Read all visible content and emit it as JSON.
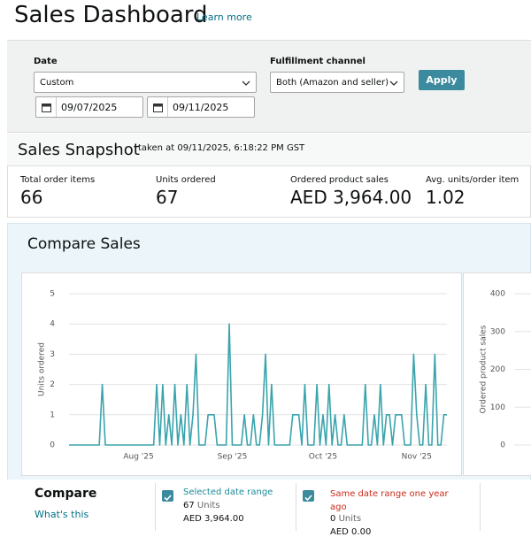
{
  "header": {
    "title": "Sales Dashboard",
    "link": "Learn more"
  },
  "filters": {
    "date_label": "Date",
    "date_option": "Custom",
    "start_date": "09/07/2025",
    "end_date": "09/11/2025",
    "channel_label": "Fulfillment channel",
    "channel_option": "Both (Amazon and seller)",
    "apply": "Apply"
  },
  "snapshot": {
    "title": "Sales Snapshot",
    "timestamp": "taken at 09/11/2025, 6:18:22 PM GST",
    "metrics": [
      {
        "label": "Total order items",
        "value": "66"
      },
      {
        "label": "Units ordered",
        "value": "67"
      },
      {
        "label": "Ordered product sales",
        "value": "AED 3,964.00"
      },
      {
        "label": "Avg. units/order item",
        "value": "1.02"
      }
    ]
  },
  "compare_sales": {
    "title": "Compare Sales"
  },
  "chart_data": [
    {
      "type": "line",
      "y_label": "Units ordered",
      "color": "#3aa4ad",
      "grid": true,
      "categories": [
        null,
        null,
        null,
        null,
        null,
        null,
        null,
        null,
        null,
        null,
        null,
        null,
        null,
        null,
        null,
        null,
        null,
        null,
        null,
        null,
        null,
        null,
        null,
        "Aug '25",
        null,
        null,
        null,
        null,
        null,
        null,
        null,
        null,
        null,
        null,
        null,
        null,
        null,
        null,
        null,
        null,
        null,
        null,
        null,
        null,
        null,
        null,
        null,
        null,
        null,
        null,
        null,
        null,
        null,
        null,
        "Sep '25",
        null,
        null,
        null,
        null,
        null,
        null,
        null,
        null,
        null,
        null,
        null,
        null,
        null,
        null,
        null,
        null,
        null,
        null,
        null,
        null,
        null,
        null,
        null,
        null,
        null,
        null,
        null,
        null,
        null,
        "Oct '25",
        null,
        null,
        null,
        null,
        null,
        null,
        null,
        null,
        null,
        null,
        null,
        null,
        null,
        null,
        null,
        null,
        null,
        null,
        null,
        null,
        null,
        null,
        null,
        null,
        null,
        null,
        null,
        null,
        null,
        null,
        "Nov '25",
        null,
        null,
        null,
        null,
        null,
        null,
        null,
        null,
        null,
        null
      ],
      "values": [
        0,
        0,
        0,
        0,
        0,
        0,
        0,
        0,
        0,
        0,
        0,
        2,
        0,
        0,
        0,
        0,
        0,
        0,
        0,
        0,
        0,
        0,
        0,
        0,
        0,
        0,
        0,
        0,
        0,
        2,
        0,
        2,
        0,
        1,
        0,
        2,
        0,
        1,
        0,
        2,
        0,
        1,
        3,
        0,
        0,
        0,
        1,
        1,
        1,
        0,
        0,
        0,
        0,
        4,
        0,
        0,
        0,
        0,
        1,
        0,
        0,
        1,
        0,
        0,
        1,
        3,
        0,
        2,
        0,
        0,
        0,
        0,
        0,
        0,
        1,
        1,
        1,
        0,
        2,
        0,
        0,
        0,
        2,
        0,
        1,
        0,
        2,
        0,
        1,
        0,
        0,
        1,
        0,
        0,
        0,
        0,
        0,
        0,
        2,
        0,
        0,
        1,
        0,
        2,
        0,
        1,
        1,
        0,
        1,
        1,
        1,
        0,
        0,
        0,
        3,
        1,
        0,
        0,
        2,
        0,
        0,
        3,
        0,
        0,
        1,
        1
      ],
      "ylim": [
        0,
        5
      ],
      "yticks": [
        0,
        1,
        2,
        3,
        4,
        5
      ]
    },
    {
      "type": "line",
      "y_label": "Ordered product sales",
      "grid": true,
      "ylim": [
        0,
        400
      ],
      "yticks": [
        0,
        100,
        200,
        300,
        400
      ]
    }
  ],
  "compare": {
    "title": "Compare",
    "link": "What's this",
    "selected": {
      "label": "Selected date range",
      "units": "67",
      "units_label": "Units",
      "sales": "AED 3,964.00"
    },
    "previous": {
      "label": "Same date range one year ago",
      "units": "0",
      "units_label": "Units",
      "sales": "AED 0.00"
    }
  }
}
